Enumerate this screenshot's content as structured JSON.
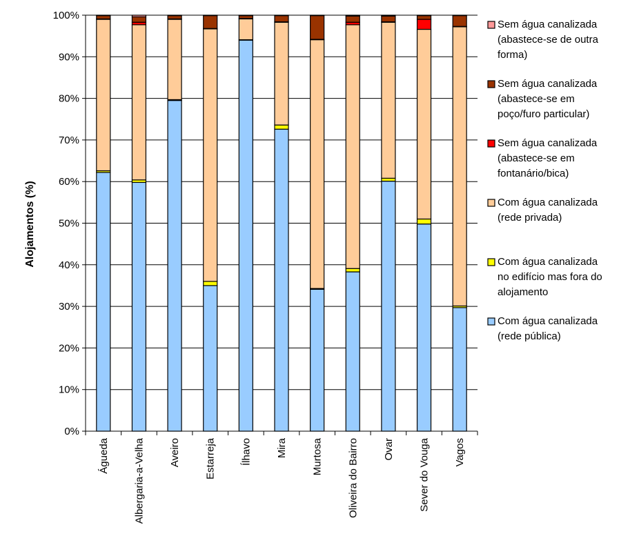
{
  "chart_data": {
    "type": "bar",
    "stacked": true,
    "percent": true,
    "ylabel": "Alojamentos (%)",
    "xlabel": "",
    "ylim": [
      0,
      100
    ],
    "yticks": [
      "0%",
      "10%",
      "20%",
      "30%",
      "40%",
      "50%",
      "60%",
      "70%",
      "80%",
      "90%",
      "100%"
    ],
    "grid": true,
    "legend_position": "right",
    "categories": [
      "Águeda",
      "Albergaria-a-Velha",
      "Aveiro",
      "Estarreja",
      "Ílhavo",
      "Mira",
      "Murtosa",
      "Oliveira do Bairro",
      "Ovar",
      "Sever do Vouga",
      "Vagos"
    ],
    "series": [
      {
        "name": "Com água canalizada (rede pública)",
        "legend_lines": [
          "Com água canalizada",
          "(rede pública)"
        ],
        "color": "#99CCFF",
        "values": [
          62.2,
          59.8,
          79.5,
          35.0,
          94.0,
          72.6,
          34.1,
          38.3,
          60.1,
          49.8,
          29.7
        ]
      },
      {
        "name": "Com água canalizada no edifício mas fora do alojamento",
        "legend_lines": [
          "Com água canalizada",
          "no edifício mas fora do",
          "alojamento"
        ],
        "color": "#FFFF00",
        "values": [
          0.4,
          0.6,
          0.2,
          1.0,
          0.1,
          1.0,
          0.2,
          0.8,
          0.7,
          1.2,
          0.4
        ]
      },
      {
        "name": "Com água canalizada (rede privada)",
        "legend_lines": [
          "Com água canalizada",
          "(rede privada)"
        ],
        "color": "#FFCC99",
        "values": [
          36.4,
          37.3,
          19.3,
          60.7,
          5.0,
          24.7,
          59.8,
          58.6,
          37.5,
          45.6,
          67.1
        ]
      },
      {
        "name": "Sem água canalizada (abastece-se em fontanário/bica)",
        "legend_lines": [
          "Sem água canalizada",
          "(abastece-se em",
          "fontanário/bica)"
        ],
        "color": "#FF0000",
        "values": [
          0.1,
          0.6,
          0.1,
          0.1,
          0.1,
          0.1,
          0.1,
          0.6,
          0.1,
          2.4,
          0.1
        ]
      },
      {
        "name": "Sem água canalizada (abastece-se em poço/furo particular)",
        "legend_lines": [
          "Sem água canalizada",
          "(abastece-se em",
          "poço/furo particular)"
        ],
        "color": "#993300",
        "values": [
          0.8,
          1.3,
          0.8,
          3.1,
          0.7,
          1.5,
          5.7,
          1.5,
          1.4,
          0.9,
          2.6
        ]
      },
      {
        "name": "Sem água canalizada (abastece-se de outra forma)",
        "legend_lines": [
          "Sem água canalizada",
          "(abastece-se de outra",
          "forma)"
        ],
        "color": "#FF9999",
        "values": [
          0.1,
          0.4,
          0.1,
          0.1,
          0.1,
          0.1,
          0.1,
          0.2,
          0.2,
          0.1,
          0.1
        ]
      }
    ]
  }
}
